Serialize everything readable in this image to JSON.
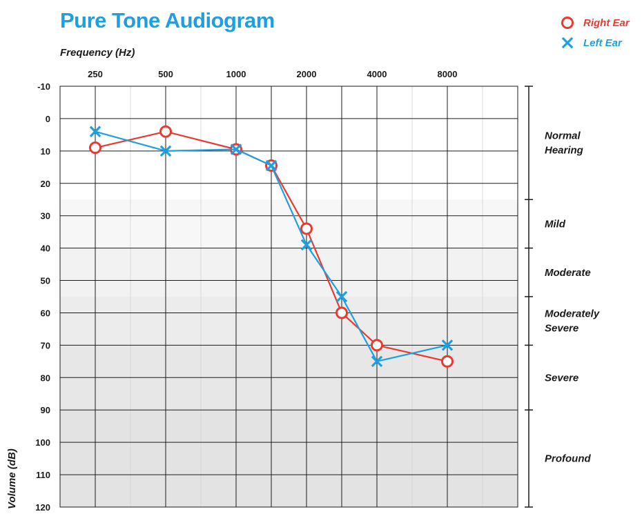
{
  "chart_data": {
    "type": "line",
    "title": "Pure Tone Audiogram",
    "xlabel": "Frequency (Hz)",
    "ylabel": "Volume (dB)",
    "x_ticks": [
      "250",
      "500",
      "1000",
      "2000",
      "4000",
      "8000"
    ],
    "x_tick_indices": [
      0,
      2,
      4,
      6,
      8,
      10
    ],
    "x_grid_indices": [
      0,
      1,
      2,
      3,
      4,
      5,
      6,
      7,
      8,
      9,
      10,
      11
    ],
    "x_major_indices": [
      0,
      2,
      4,
      5,
      6,
      7,
      8,
      10
    ],
    "x_range": [
      -1,
      12
    ],
    "y_ticks": [
      -10,
      0,
      10,
      20,
      30,
      40,
      50,
      60,
      70,
      80,
      90,
      100,
      110,
      120
    ],
    "ylim": [
      -10,
      120
    ],
    "y_inverted": true,
    "series": [
      {
        "name": "Right Ear",
        "marker": "circle",
        "color": "#e83a30",
        "points": [
          [
            0,
            9
          ],
          [
            2,
            4
          ],
          [
            4,
            9.5
          ],
          [
            5,
            14.5
          ],
          [
            6,
            34
          ],
          [
            7,
            60
          ],
          [
            8,
            70
          ],
          [
            10,
            75
          ]
        ]
      },
      {
        "name": "Left Ear",
        "marker": "cross",
        "color": "#1d9fe0",
        "points": [
          [
            0,
            4
          ],
          [
            2,
            10
          ],
          [
            4,
            9.5
          ],
          [
            5,
            14.5
          ],
          [
            6,
            39
          ],
          [
            7,
            55
          ],
          [
            8,
            75
          ],
          [
            10,
            70
          ]
        ]
      }
    ],
    "bands": [
      {
        "label": [
          "Normal",
          "Hearing"
        ],
        "from": -10,
        "to": 25,
        "shade": "#ffffff"
      },
      {
        "label": [
          "Mild"
        ],
        "from": 25,
        "to": 40,
        "shade": "#f7f7f7"
      },
      {
        "label": [
          "Moderate"
        ],
        "from": 40,
        "to": 55,
        "shade": "#f2f2f2"
      },
      {
        "label": [
          "Moderately",
          "Severe"
        ],
        "from": 55,
        "to": 70,
        "shade": "#ececec"
      },
      {
        "label": [
          "Severe"
        ],
        "from": 70,
        "to": 90,
        "shade": "#e7e7e7"
      },
      {
        "label": [
          "Profound"
        ],
        "from": 90,
        "to": 120,
        "shade": "#e3e3e3"
      }
    ],
    "legend_position": "top-right",
    "title_color": "#1d9fe0"
  }
}
